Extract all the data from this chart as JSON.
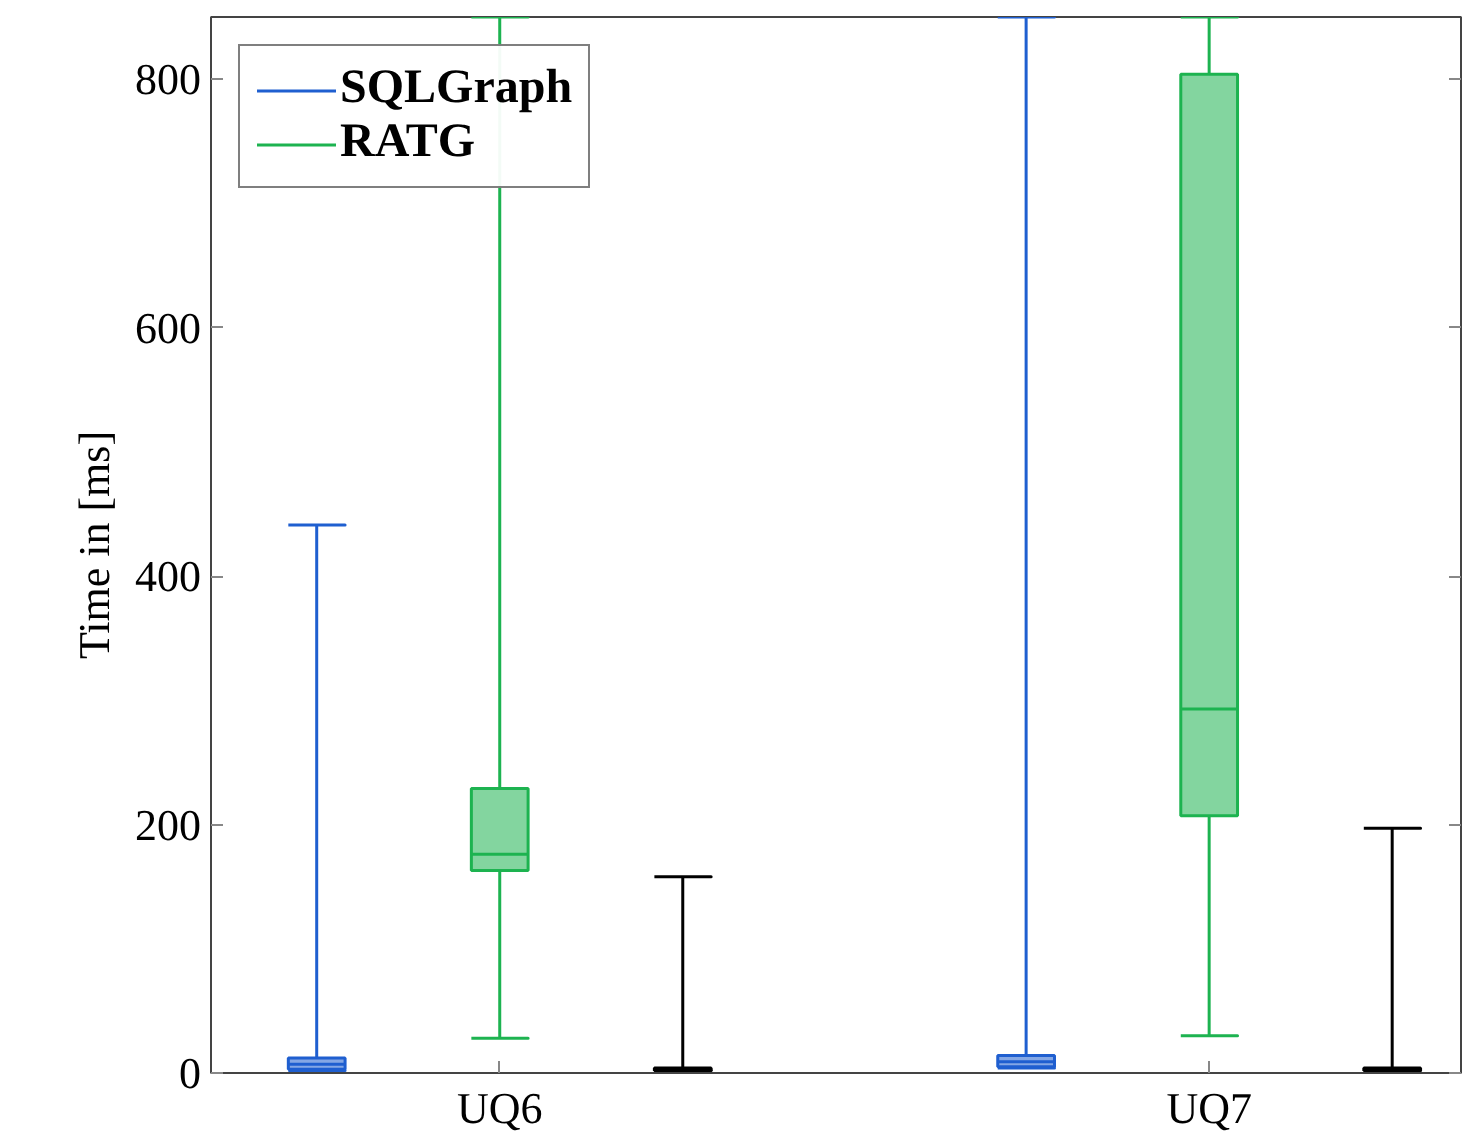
{
  "chart_data": {
    "type": "box",
    "ylabel": "Time in [ms]",
    "categories": [
      "UQ6",
      "UQ7"
    ],
    "ylim": [
      0,
      850
    ],
    "yticks": [
      0,
      200,
      400,
      600,
      800
    ],
    "grid": false,
    "legend": "top left",
    "series": [
      {
        "name": "SQLGraph",
        "color": "#1f5fd0",
        "boxes": [
          {
            "low": 2,
            "q1": 3,
            "median": 7,
            "q3": 12,
            "high": 441
          },
          {
            "low": 4,
            "q1": 5,
            "median": 9,
            "q3": 14,
            "high": 850
          }
        ]
      },
      {
        "name": "RATG",
        "color": "#1db350",
        "boxes": [
          {
            "low": 28,
            "q1": 163,
            "median": 176,
            "q3": 229,
            "high": 850
          },
          {
            "low": 30,
            "q1": 207,
            "median": 293,
            "q3": 804,
            "high": 850
          }
        ]
      },
      {
        "color": "#000000",
        "boxes": [
          {
            "low": 2,
            "q1": 2,
            "median": 3,
            "q3": 4,
            "high": 158
          },
          {
            "low": 2,
            "q1": 2,
            "median": 3,
            "q3": 4,
            "high": 197
          }
        ]
      }
    ]
  }
}
